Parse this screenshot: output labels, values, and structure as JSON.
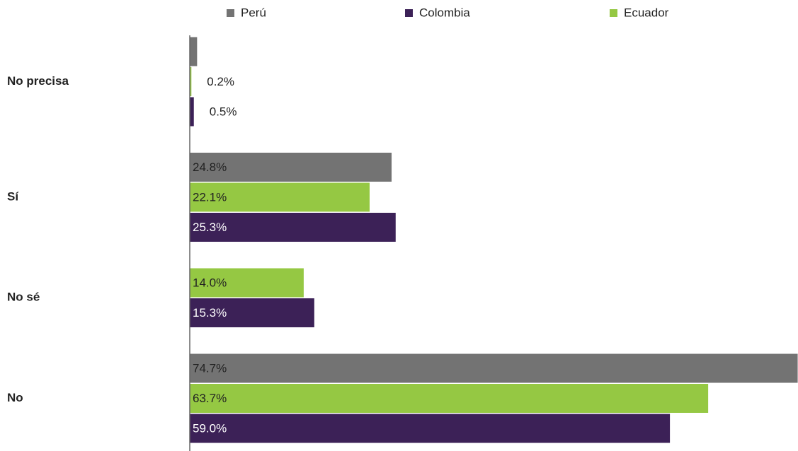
{
  "chart_data": {
    "type": "bar",
    "orientation": "horizontal",
    "categories": [
      "No precisa",
      "Sí",
      "No sé",
      "No"
    ],
    "series": [
      {
        "name": "Perú",
        "color": "#737373",
        "values": [
          0.9,
          24.8,
          null,
          74.7
        ],
        "value_labels": [
          null,
          "24.8%",
          null,
          "74.7%"
        ]
      },
      {
        "name": "Colombia",
        "color": "#3c2157",
        "values": [
          0.5,
          25.3,
          15.3,
          59.0
        ],
        "value_labels": [
          "0.5%",
          "25.3%",
          "15.3%",
          "59.0%"
        ]
      },
      {
        "name": "Ecuador",
        "color": "#95c843",
        "values": [
          0.2,
          22.1,
          14.0,
          63.7
        ],
        "value_labels": [
          "0.2%",
          "22.1%",
          "14.0%",
          "63.7%"
        ]
      }
    ],
    "xlim": [
      0,
      75
    ]
  }
}
